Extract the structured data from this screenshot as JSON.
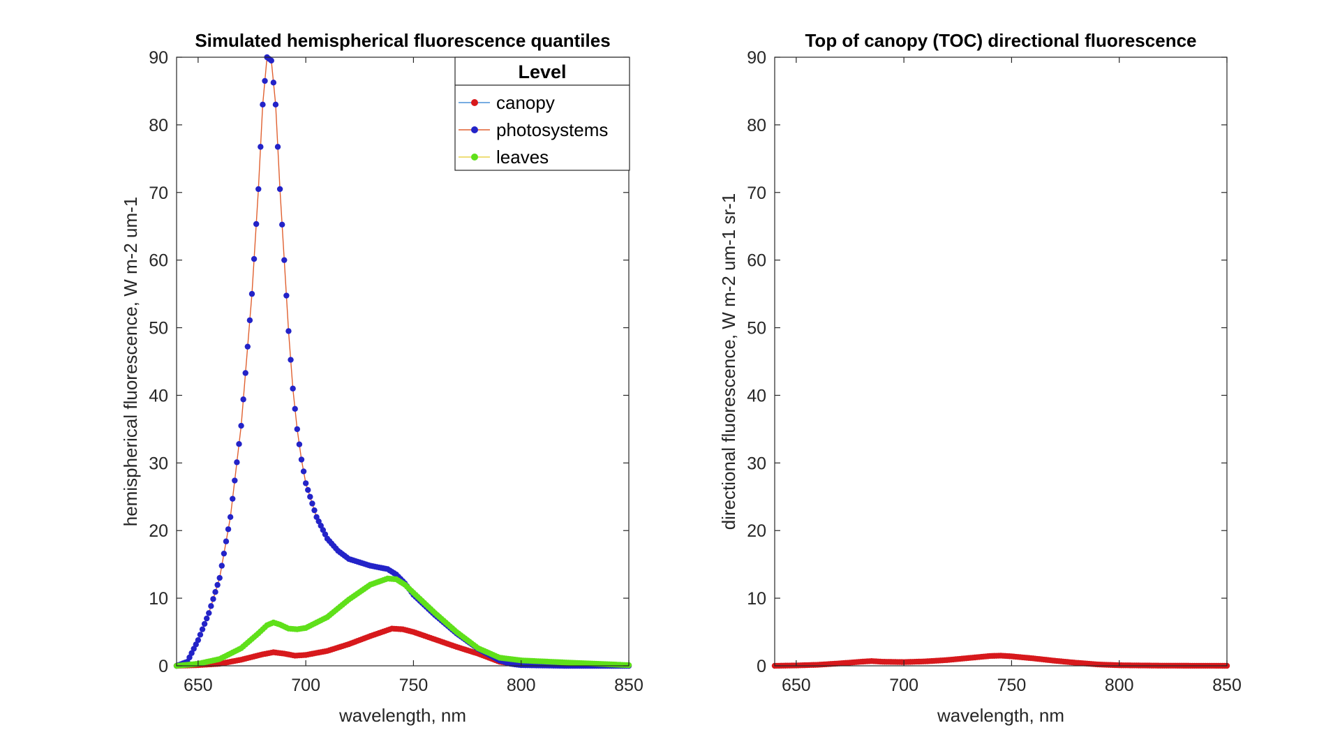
{
  "chart_data": [
    {
      "type": "line",
      "title": "Simulated hemispherical fluorescence quantiles",
      "xlabel": "wavelength, nm",
      "ylabel": "hemispherical fluorescence, W m-2 um-1",
      "xlim": [
        640,
        850
      ],
      "ylim": [
        0,
        90
      ],
      "xticks": [
        "650",
        "700",
        "750",
        "800",
        "850"
      ],
      "yticks": [
        "0",
        "10",
        "20",
        "30",
        "40",
        "50",
        "60",
        "70",
        "80",
        "90"
      ],
      "legend": {
        "title": "Level",
        "placement": "top-right"
      },
      "series": [
        {
          "name": "canopy",
          "line_color": "#4a90d9",
          "marker_color": "#d7191c",
          "x": [
            640,
            650,
            660,
            670,
            680,
            685,
            690,
            695,
            700,
            710,
            720,
            730,
            740,
            745,
            750,
            760,
            770,
            780,
            790,
            800,
            820,
            850
          ],
          "y": [
            0,
            0.1,
            0.3,
            0.9,
            1.7,
            2.0,
            1.8,
            1.5,
            1.6,
            2.2,
            3.2,
            4.4,
            5.5,
            5.4,
            5.0,
            3.9,
            2.8,
            1.8,
            0.6,
            0.15,
            0.05,
            0
          ]
        },
        {
          "name": "photosystems",
          "line_color": "#e06030",
          "marker_color": "#2323c8",
          "x": [
            640,
            645,
            650,
            655,
            660,
            665,
            670,
            675,
            678,
            680,
            682,
            684,
            686,
            688,
            690,
            692,
            694,
            696,
            698,
            700,
            705,
            710,
            715,
            720,
            730,
            738,
            742,
            746,
            750,
            760,
            770,
            780,
            790,
            795,
            800,
            820,
            850
          ],
          "y": [
            0,
            0.6,
            3.8,
            7.8,
            13.0,
            22.0,
            35.5,
            55.0,
            70.5,
            83.0,
            90.0,
            89.5,
            83.0,
            70.5,
            60.0,
            49.5,
            41.0,
            35.0,
            30.5,
            27.0,
            22.0,
            18.8,
            17.0,
            15.8,
            14.8,
            14.3,
            13.5,
            12.2,
            10.5,
            7.5,
            4.8,
            2.5,
            0.8,
            0.3,
            0.1,
            0,
            0
          ]
        },
        {
          "name": "leaves",
          "line_color": "#e8d44d",
          "marker_color": "#5fe01a",
          "x": [
            640,
            650,
            660,
            670,
            678,
            682,
            685,
            688,
            692,
            696,
            700,
            710,
            720,
            730,
            738,
            742,
            746,
            750,
            760,
            770,
            780,
            790,
            800,
            820,
            850
          ],
          "y": [
            0,
            0.3,
            1.0,
            2.6,
            4.8,
            6.0,
            6.4,
            6.1,
            5.5,
            5.4,
            5.6,
            7.2,
            9.8,
            12.0,
            12.9,
            12.8,
            12.0,
            10.8,
            7.8,
            5.0,
            2.6,
            1.2,
            0.8,
            0.5,
            0.1
          ]
        }
      ]
    },
    {
      "type": "line",
      "title": "Top of canopy (TOC) directional fluorescence",
      "xlabel": "wavelength, nm",
      "ylabel": "directional fluorescence, W m-2 um-1 sr-1",
      "xlim": [
        640,
        850
      ],
      "ylim": [
        0,
        90
      ],
      "xticks": [
        "650",
        "700",
        "750",
        "800",
        "850"
      ],
      "yticks": [
        "0",
        "10",
        "20",
        "30",
        "40",
        "50",
        "60",
        "70",
        "80",
        "90"
      ],
      "series": [
        {
          "line_color": "#4a90d9",
          "marker_color": "#d7191c",
          "x": [
            640,
            650,
            660,
            670,
            680,
            685,
            690,
            700,
            710,
            720,
            730,
            740,
            745,
            750,
            760,
            770,
            780,
            790,
            800,
            820,
            850
          ],
          "y": [
            0,
            0.05,
            0.15,
            0.35,
            0.6,
            0.7,
            0.6,
            0.55,
            0.65,
            0.85,
            1.15,
            1.45,
            1.5,
            1.4,
            1.1,
            0.75,
            0.45,
            0.2,
            0.08,
            0.02,
            0
          ]
        }
      ]
    }
  ]
}
